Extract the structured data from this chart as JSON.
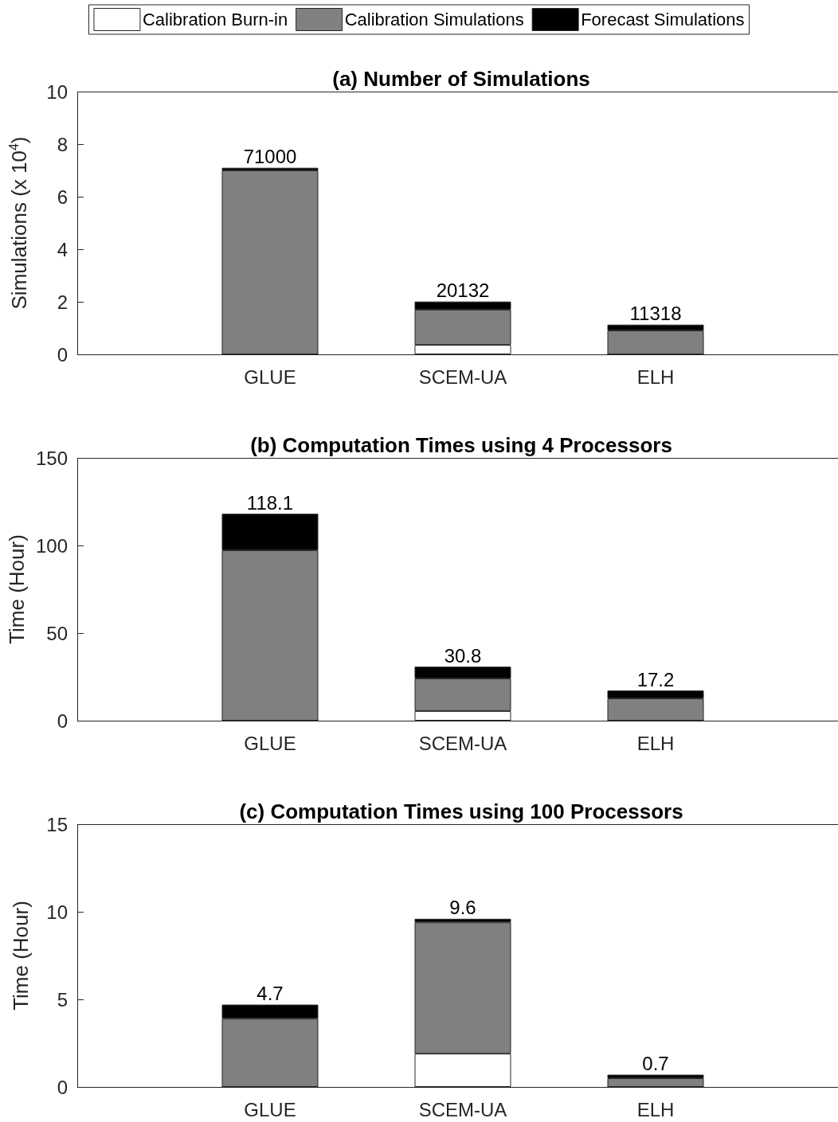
{
  "chart_data": [
    {
      "type": "bar",
      "title": "(a) Number of Simulations",
      "ylabel": "Simulations (x 10$^{4}$)",
      "categories": [
        "GLUE",
        "SCEM-UA",
        "ELH"
      ],
      "stacked": true,
      "legend": "top",
      "series": [
        {
          "name": "Calibration Burn-in",
          "color": "#ffffff",
          "values": [
            0,
            0.36,
            0
          ]
        },
        {
          "name": "Calibration Simulations",
          "color": "#808080",
          "values": [
            7.0,
            1.34,
            0.91
          ]
        },
        {
          "name": "Forecast Simulations",
          "color": "#000000",
          "values": [
            0.1,
            0.31,
            0.22
          ]
        }
      ],
      "annotations": [
        {
          "text": "71000",
          "x": "GLUE",
          "y": 7.1
        },
        {
          "text": "20132",
          "x": "SCEM-UA",
          "y": 2.01
        },
        {
          "text": "11318",
          "x": "ELH",
          "y": 1.13
        }
      ],
      "ylim": [
        0,
        10
      ],
      "yticks": [
        0,
        2,
        4,
        6,
        8,
        10
      ]
    },
    {
      "type": "bar",
      "title": "(b) Computation Times using 4 Processors",
      "ylabel": "Time (Hour)",
      "categories": [
        "GLUE",
        "SCEM-UA",
        "ELH"
      ],
      "stacked": true,
      "series": [
        {
          "color": "#ffffff",
          "values": [
            0,
            5.5,
            0
          ]
        },
        {
          "color": "#808080",
          "values": [
            97.3,
            18.6,
            12.7
          ]
        },
        {
          "color": "#000000",
          "values": [
            20.8,
            6.7,
            4.5
          ]
        }
      ],
      "totals": [
        "118.1",
        "30.8",
        "17.2"
      ],
      "ylim": [
        0,
        150
      ],
      "yticks": [
        0,
        50,
        100,
        150
      ]
    },
    {
      "type": "bar",
      "title": "(c) Computation Times using 100 Processors",
      "ylabel": "Time (Hour)",
      "categories": [
        "GLUE",
        "SCEM-UA",
        "ELH"
      ],
      "stacked": true,
      "series": [
        {
          "color": "#ffffff",
          "values": [
            0,
            1.9,
            0
          ]
        },
        {
          "color": "#808080",
          "values": [
            3.9,
            7.5,
            0.5
          ]
        },
        {
          "color": "#000000",
          "values": [
            0.8,
            0.2,
            0.2
          ]
        }
      ],
      "totals": [
        "4.7",
        "9.6",
        "0.7"
      ],
      "ylim": [
        0,
        15
      ],
      "yticks": [
        0,
        5,
        10,
        15
      ]
    }
  ]
}
